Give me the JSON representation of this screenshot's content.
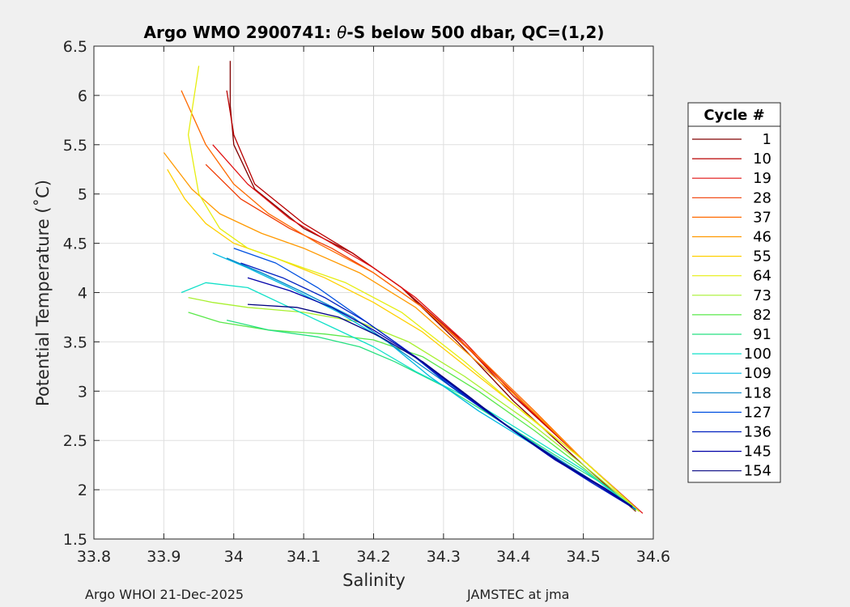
{
  "chart_data": {
    "type": "line",
    "title_parts": [
      "Argo WMO 2900741: ",
      "θ",
      "-S below 500 dbar,  QC=(1,2)"
    ],
    "xlabel": "Salinity",
    "ylabel": "Potential Temperature (˚C)",
    "xlim": [
      33.8,
      34.6
    ],
    "ylim": [
      1.5,
      6.5
    ],
    "xticks": [
      "33.8",
      "33.9",
      "34",
      "34.1",
      "34.2",
      "34.3",
      "34.4",
      "34.5",
      "34.6"
    ],
    "yticks": [
      "1.5",
      "2",
      "2.5",
      "3",
      "3.5",
      "4",
      "4.5",
      "5",
      "5.5",
      "6",
      "6.5"
    ],
    "grid": true,
    "legend": {
      "title": "Cycle #",
      "position": "right",
      "entries": [
        "1",
        "10",
        "19",
        "28",
        "37",
        "46",
        "55",
        "64",
        "73",
        "82",
        "91",
        "100",
        "109",
        "118",
        "127",
        "136",
        "145",
        "154"
      ],
      "colors": [
        "#800000",
        "#b80000",
        "#e01010",
        "#f03a00",
        "#ff6a00",
        "#ff9900",
        "#ffd000",
        "#e6ee10",
        "#a8f030",
        "#5ae84a",
        "#26e080",
        "#10e0c8",
        "#00b8e0",
        "#0086c8",
        "#0050e0",
        "#0020c0",
        "#0000a8",
        "#000080"
      ]
    },
    "series": [
      {
        "name": "1",
        "color": "#800000",
        "s": [
          33.995,
          33.995,
          34.0,
          34.03,
          34.1,
          34.17,
          34.24,
          34.32,
          34.4,
          34.5,
          34.575
        ],
        "t": [
          6.35,
          5.9,
          5.5,
          5.05,
          4.65,
          4.4,
          4.05,
          3.5,
          2.9,
          2.25,
          1.78
        ]
      },
      {
        "name": "10",
        "color": "#b80000",
        "s": [
          33.99,
          34.0,
          34.03,
          34.1,
          34.17,
          34.24,
          34.32,
          34.4,
          34.5,
          34.58
        ],
        "t": [
          6.05,
          5.6,
          5.1,
          4.7,
          4.4,
          4.05,
          3.55,
          2.95,
          2.3,
          1.78
        ]
      },
      {
        "name": "19",
        "color": "#e01010",
        "s": [
          33.97,
          34.02,
          34.08,
          34.14,
          34.2,
          34.26,
          34.33,
          34.41,
          34.5,
          34.585
        ],
        "t": [
          5.5,
          5.1,
          4.75,
          4.5,
          4.25,
          3.95,
          3.5,
          2.9,
          2.3,
          1.76
        ]
      },
      {
        "name": "28",
        "color": "#f03a00",
        "s": [
          33.96,
          34.01,
          34.08,
          34.14,
          34.2,
          34.27,
          34.34,
          34.42,
          34.5,
          34.58
        ],
        "t": [
          5.3,
          4.95,
          4.65,
          4.45,
          4.2,
          3.85,
          3.4,
          2.85,
          2.3,
          1.78
        ]
      },
      {
        "name": "37",
        "color": "#ff6a00",
        "s": [
          33.925,
          33.96,
          34.0,
          34.05,
          34.12,
          34.2,
          34.27,
          34.35,
          34.43,
          34.5,
          34.58
        ],
        "t": [
          6.05,
          5.5,
          5.1,
          4.8,
          4.5,
          4.2,
          3.85,
          3.35,
          2.8,
          2.3,
          1.78
        ]
      },
      {
        "name": "46",
        "color": "#ff9900",
        "s": [
          33.9,
          33.94,
          33.98,
          34.04,
          34.1,
          34.18,
          34.26,
          34.34,
          34.42,
          34.5,
          34.58
        ],
        "t": [
          5.42,
          5.05,
          4.8,
          4.6,
          4.45,
          4.2,
          3.85,
          3.35,
          2.85,
          2.3,
          1.78
        ]
      },
      {
        "name": "55",
        "color": "#ffd000",
        "s": [
          33.905,
          33.93,
          33.96,
          34.0,
          34.06,
          34.13,
          34.2,
          34.27,
          34.35,
          34.43,
          34.5,
          34.58
        ],
        "t": [
          5.25,
          4.95,
          4.7,
          4.5,
          4.35,
          4.15,
          3.9,
          3.6,
          3.15,
          2.7,
          2.3,
          1.78
        ]
      },
      {
        "name": "64",
        "color": "#e6ee10",
        "s": [
          33.95,
          33.935,
          33.95,
          33.98,
          34.02,
          34.08,
          34.16,
          34.24,
          34.33,
          34.42,
          34.5,
          34.58
        ],
        "t": [
          6.3,
          5.6,
          5.0,
          4.65,
          4.45,
          4.3,
          4.1,
          3.8,
          3.3,
          2.75,
          2.3,
          1.78
        ]
      },
      {
        "name": "73",
        "color": "#a8f030",
        "s": [
          33.935,
          33.97,
          34.02,
          34.1,
          34.18,
          34.25,
          34.33,
          34.42,
          34.5,
          34.58
        ],
        "t": [
          3.95,
          3.9,
          3.85,
          3.8,
          3.7,
          3.5,
          3.15,
          2.7,
          2.25,
          1.78
        ]
      },
      {
        "name": "82",
        "color": "#5ae84a",
        "s": [
          33.935,
          33.98,
          34.05,
          34.13,
          34.2,
          34.27,
          34.35,
          34.43,
          34.5,
          34.575
        ],
        "t": [
          3.8,
          3.7,
          3.62,
          3.58,
          3.52,
          3.35,
          3.0,
          2.6,
          2.22,
          1.79
        ]
      },
      {
        "name": "91",
        "color": "#26e080",
        "s": [
          33.99,
          34.05,
          34.12,
          34.18,
          34.23,
          34.3,
          34.38,
          34.46,
          34.53,
          34.575
        ],
        "t": [
          3.72,
          3.62,
          3.55,
          3.45,
          3.3,
          3.05,
          2.7,
          2.35,
          2.05,
          1.8
        ]
      },
      {
        "name": "100",
        "color": "#10e0c8",
        "s": [
          33.925,
          33.96,
          34.02,
          34.08,
          34.14,
          34.2,
          34.26,
          34.33,
          34.41,
          34.5,
          34.575
        ],
        "t": [
          4.0,
          4.1,
          4.05,
          3.85,
          3.65,
          3.45,
          3.2,
          2.95,
          2.6,
          2.2,
          1.8
        ]
      },
      {
        "name": "109",
        "color": "#00b8e0",
        "s": [
          33.97,
          34.02,
          34.08,
          34.15,
          34.22,
          34.28,
          34.35,
          34.43,
          34.5,
          34.575
        ],
        "t": [
          4.4,
          4.25,
          4.05,
          3.8,
          3.5,
          3.15,
          2.8,
          2.45,
          2.15,
          1.8
        ]
      },
      {
        "name": "118",
        "color": "#0086c8",
        "s": [
          33.99,
          34.04,
          34.1,
          34.17,
          34.23,
          34.29,
          34.36,
          34.44,
          34.5,
          34.575
        ],
        "t": [
          4.35,
          4.2,
          4.0,
          3.75,
          3.45,
          3.15,
          2.8,
          2.42,
          2.15,
          1.8
        ]
      },
      {
        "name": "127",
        "color": "#0050e0",
        "s": [
          34.0,
          34.06,
          34.12,
          34.18,
          34.24,
          34.3,
          34.37,
          34.44,
          34.51,
          34.575
        ],
        "t": [
          4.45,
          4.3,
          4.05,
          3.75,
          3.45,
          3.12,
          2.75,
          2.4,
          2.1,
          1.8
        ]
      },
      {
        "name": "136",
        "color": "#0020c0",
        "s": [
          34.01,
          34.07,
          34.13,
          34.19,
          34.25,
          34.31,
          34.38,
          34.45,
          34.51,
          34.57
        ],
        "t": [
          4.3,
          4.15,
          3.95,
          3.7,
          3.4,
          3.05,
          2.7,
          2.35,
          2.08,
          1.82
        ]
      },
      {
        "name": "145",
        "color": "#0000a8",
        "s": [
          34.02,
          34.08,
          34.14,
          34.2,
          34.26,
          34.32,
          34.39,
          34.46,
          34.52,
          34.57
        ],
        "t": [
          4.15,
          4.02,
          3.85,
          3.62,
          3.35,
          3.02,
          2.65,
          2.3,
          2.05,
          1.82
        ]
      },
      {
        "name": "154",
        "color": "#000080",
        "s": [
          34.02,
          34.09,
          34.15,
          34.21,
          34.27,
          34.33,
          34.4,
          34.47,
          34.53,
          34.57
        ],
        "t": [
          3.88,
          3.85,
          3.75,
          3.55,
          3.3,
          2.98,
          2.6,
          2.27,
          2.02,
          1.83
        ]
      }
    ]
  },
  "footer": {
    "left": "Argo WHOI 21-Dec-2025",
    "right": "JAMSTEC at jma"
  }
}
